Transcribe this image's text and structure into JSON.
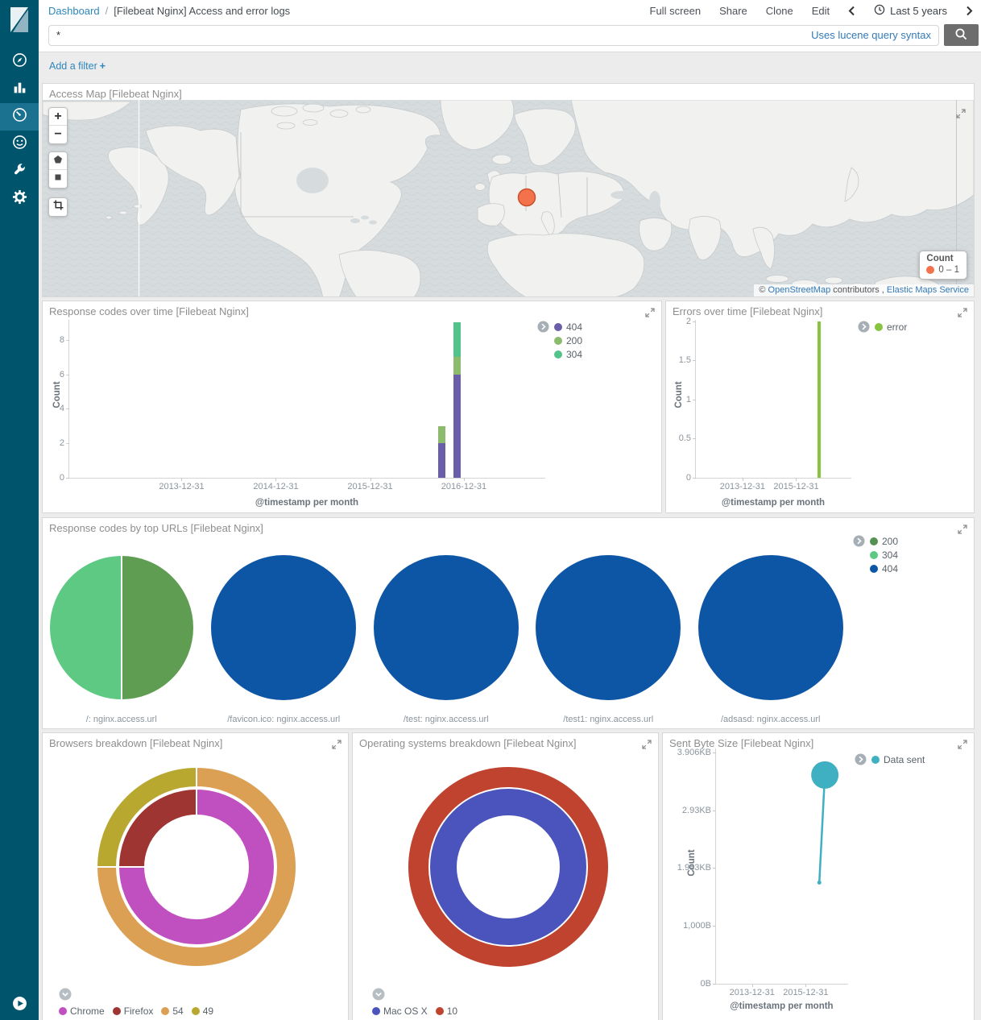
{
  "colors": {
    "sidebar_bg": "#00556D",
    "sidebar_active_bg": "#1A7190",
    "link_blue": "#2D86BD",
    "hint_link": "#337AB7",
    "panel_title": "#8E8E8E",
    "search_button_bg": "#6D6D6D",
    "map_marker": "#F3714B"
  },
  "nav": {
    "breadcrumb": {
      "root": "Dashboard",
      "separator": "/",
      "current": "[Filebeat Nginx] Access and error logs"
    },
    "menu": [
      {
        "label": "Full screen"
      },
      {
        "label": "Share"
      },
      {
        "label": "Clone"
      },
      {
        "label": "Edit"
      }
    ],
    "time_picker": {
      "label": "Last 5 years"
    }
  },
  "query_bar": {
    "value": "*",
    "hint": "Uses lucene query syntax"
  },
  "filter_bar": {
    "label": "Add a filter",
    "plus": "+"
  },
  "sidebar": {
    "items": [
      {
        "name": "discover"
      },
      {
        "name": "visualize"
      },
      {
        "name": "dashboard",
        "active": true
      },
      {
        "name": "timelion"
      },
      {
        "name": "dev-tools"
      },
      {
        "name": "management"
      }
    ]
  },
  "chart_data": [
    {
      "id": "access-map",
      "type": "map",
      "title": "Access Map [Filebeat Nginx]",
      "legend": {
        "title": "Count",
        "items": [
          {
            "label": "0 – 1",
            "color": "#F3714B"
          }
        ]
      },
      "markers": [
        {
          "region": "Western Europe (Germany)",
          "count_range": "0 – 1",
          "color": "#F3714B"
        }
      ],
      "attribution": {
        "prefix": "© ",
        "link_osm": "OpenStreetMap",
        "middle": " contributors , ",
        "link_ems": "Elastic Maps Service"
      },
      "controls": [
        "zoom-in",
        "zoom-out",
        "draw-polygon",
        "draw-rectangle",
        "crop"
      ]
    },
    {
      "id": "response-codes",
      "type": "bar",
      "title": "Response codes over time [Filebeat Nginx]",
      "xlabel": "@timestamp per month",
      "ylabel": "Count",
      "ylim": [
        0,
        9.16
      ],
      "yticks": [
        {
          "v": 0,
          "label": "0"
        },
        {
          "v": 2,
          "label": "2"
        },
        {
          "v": 4,
          "label": "4"
        },
        {
          "v": 6,
          "label": "6"
        },
        {
          "v": 8,
          "label": "8"
        }
      ],
      "xticks": [
        {
          "f": 0.236,
          "label": "2013-12-31"
        },
        {
          "f": 0.434,
          "label": "2014-12-31"
        },
        {
          "f": 0.632,
          "label": "2015-12-31"
        },
        {
          "f": 0.829,
          "label": "2016-12-31"
        }
      ],
      "series": [
        {
          "name": "404",
          "color": "#6A5EA8"
        },
        {
          "name": "200",
          "color": "#8CBB6E"
        },
        {
          "name": "304",
          "color": "#54C28B"
        }
      ],
      "bars": [
        {
          "f": 0.782,
          "w": 9,
          "stack": [
            {
              "series": "404",
              "value": 2
            },
            {
              "series": "200",
              "value": 1
            }
          ]
        },
        {
          "f": 0.814,
          "w": 9,
          "stack": [
            {
              "series": "404",
              "value": 6
            },
            {
              "series": "200",
              "value": 1
            },
            {
              "series": "304",
              "value": 2
            }
          ]
        }
      ],
      "legend": [
        {
          "label": "404",
          "color": "#6A5EA8"
        },
        {
          "label": "200",
          "color": "#8CBB6E"
        },
        {
          "label": "304",
          "color": "#54C28B"
        }
      ]
    },
    {
      "id": "errors",
      "type": "bar",
      "title": "Errors over time [Filebeat Nginx]",
      "xlabel": "@timestamp per month",
      "ylabel": "Count",
      "ylim": [
        0,
        2.02
      ],
      "yticks": [
        {
          "v": 0,
          "label": "0"
        },
        {
          "v": 0.5,
          "label": "0.5"
        },
        {
          "v": 1,
          "label": "1"
        },
        {
          "v": 1.5,
          "label": "1.5"
        },
        {
          "v": 2,
          "label": "2"
        }
      ],
      "xticks": [
        {
          "f": 0.3,
          "label": "2013-12-31"
        },
        {
          "f": 0.645,
          "label": "2015-12-31"
        }
      ],
      "series": [
        {
          "name": "error",
          "color": "#87C440"
        }
      ],
      "bars": [
        {
          "f": 0.794,
          "w": 4,
          "stack": [
            {
              "series": "error",
              "value": 2
            }
          ]
        }
      ],
      "legend": [
        {
          "label": "error",
          "color": "#87C440"
        }
      ]
    },
    {
      "id": "top-urls",
      "type": "pie",
      "title": "Response codes by top URLs [Filebeat Nginx]",
      "legend": [
        {
          "label": "200",
          "color": "#559151"
        },
        {
          "label": "304",
          "color": "#5DC983"
        },
        {
          "label": "404",
          "color": "#0D55A5"
        }
      ],
      "pies": [
        {
          "label": "/: nginx.access.url",
          "slices": [
            {
              "series": "200",
              "value": 0.5,
              "color": "#5F9E52"
            },
            {
              "series": "304",
              "value": 0.5,
              "color": "#5DC983"
            }
          ]
        },
        {
          "label": "/favicon.ico: nginx.access.url",
          "slices": [
            {
              "series": "404",
              "value": 1,
              "color": "#0D55A5"
            }
          ]
        },
        {
          "label": "/test: nginx.access.url",
          "slices": [
            {
              "series": "404",
              "value": 1,
              "color": "#0D55A5"
            }
          ]
        },
        {
          "label": "/test1: nginx.access.url",
          "slices": [
            {
              "series": "404",
              "value": 1,
              "color": "#0D55A5"
            }
          ]
        },
        {
          "label": "/adsasd: nginx.access.url",
          "slices": [
            {
              "series": "404",
              "value": 1,
              "color": "#0D55A5"
            }
          ]
        }
      ]
    },
    {
      "id": "browsers",
      "type": "donut",
      "title": "Browsers breakdown [Filebeat Nginx]",
      "rings": [
        {
          "r0": 64,
          "r1": 97,
          "slices": [
            {
              "label": "Chrome",
              "value": 0.75,
              "color": "#C04FC0"
            },
            {
              "label": "Firefox",
              "value": 0.25,
              "color": "#9E3533"
            }
          ]
        },
        {
          "r0": 99,
          "r1": 124,
          "slices": [
            {
              "label": "54",
              "value": 0.75,
              "color": "#DCA054"
            },
            {
              "label": "49",
              "value": 0.25,
              "color": "#B8A82F"
            }
          ]
        }
      ],
      "legend": [
        {
          "label": "Chrome",
          "color": "#C04FC0"
        },
        {
          "label": "Firefox",
          "color": "#9E3533"
        },
        {
          "label": "54",
          "color": "#DCA054"
        },
        {
          "label": "49",
          "color": "#B8A82F"
        }
      ]
    },
    {
      "id": "os",
      "type": "donut",
      "title": "Operating systems breakdown [Filebeat Nginx]",
      "rings": [
        {
          "r0": 64,
          "r1": 97,
          "slices": [
            {
              "label": "Mac OS X",
              "value": 1,
              "color": "#4B53BC"
            }
          ]
        },
        {
          "r0": 99,
          "r1": 124,
          "slices": [
            {
              "label": "10",
              "value": 1,
              "color": "#C0432F"
            }
          ]
        }
      ],
      "legend": [
        {
          "label": "Mac OS X",
          "color": "#4B53BC"
        },
        {
          "label": "10",
          "color": "#C0432F"
        }
      ]
    },
    {
      "id": "sent-bytes",
      "type": "line",
      "title": "Sent Byte Size [Filebeat Nginx]",
      "xlabel": "@timestamp per month",
      "ylabel": "Count",
      "ylim": [
        0,
        4069
      ],
      "yticks": [
        {
          "v": 0,
          "label": "0B"
        },
        {
          "v": 1000,
          "label": "1,000B"
        },
        {
          "v": 2000,
          "label": "1.953KB"
        },
        {
          "v": 3000,
          "label": "2.93KB"
        },
        {
          "v": 4000,
          "label": "3.906KB"
        }
      ],
      "xticks": [
        {
          "f": 0.273,
          "label": "2013-12-31"
        },
        {
          "f": 0.679,
          "label": "2015-12-31"
        }
      ],
      "series": [
        {
          "name": "Data sent",
          "color": "#3FB0C2"
        }
      ],
      "points": [
        {
          "f": 0.782,
          "v": 1750,
          "r": 2.5
        },
        {
          "f": 0.824,
          "v": 3611,
          "r": 17
        }
      ],
      "legend": [
        {
          "label": "Data sent",
          "color": "#3FB0C2"
        }
      ]
    }
  ]
}
